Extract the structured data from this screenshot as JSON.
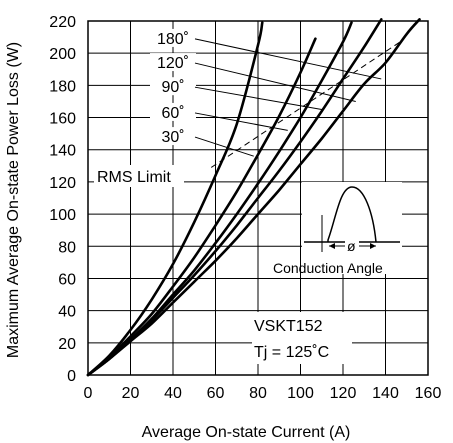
{
  "chart_data": {
    "type": "line",
    "xlabel": "Average On-state Current (A)",
    "ylabel": "Maximum Average On-state Power Loss (W)",
    "xlim": [
      0,
      160
    ],
    "ylim": [
      0,
      220
    ],
    "x_ticks": [
      0,
      20,
      40,
      60,
      80,
      100,
      120,
      140,
      160
    ],
    "y_ticks": [
      0,
      20,
      40,
      60,
      80,
      100,
      120,
      140,
      160,
      180,
      200,
      220
    ],
    "grid": true,
    "series": [
      {
        "name": "180˚",
        "x": [
          0,
          10,
          20,
          30,
          40,
          50,
          60,
          70,
          80,
          90,
          100,
          110,
          120,
          130,
          140,
          150,
          156
        ],
        "y": [
          0,
          10,
          21,
          32,
          45,
          58,
          71,
          85,
          100,
          115,
          131,
          147,
          164,
          181,
          194,
          212,
          221
        ]
      },
      {
        "name": "120˚",
        "x": [
          0,
          10,
          20,
          30,
          40,
          50,
          60,
          70,
          80,
          90,
          100,
          110,
          120,
          130,
          138
        ],
        "y": [
          0,
          10,
          22,
          34,
          48,
          62,
          77,
          93,
          110,
          127,
          145,
          164,
          184,
          204,
          221
        ]
      },
      {
        "name": "90˚",
        "x": [
          0,
          10,
          20,
          30,
          40,
          50,
          60,
          70,
          80,
          90,
          100,
          110,
          120,
          124
        ],
        "y": [
          0,
          10,
          22,
          35,
          50,
          65,
          82,
          100,
          119,
          139,
          160,
          183,
          207,
          219
        ]
      },
      {
        "name": "60˚",
        "x": [
          0,
          10,
          20,
          30,
          40,
          50,
          60,
          70,
          80,
          90,
          100,
          107
        ],
        "y": [
          0,
          11,
          24,
          38,
          55,
          73,
          93,
          114,
          137,
          161,
          188,
          209
        ]
      },
      {
        "name": "30˚",
        "x": [
          0,
          10,
          20,
          30,
          40,
          50,
          60,
          70,
          80,
          82
        ],
        "y": [
          0,
          12,
          28,
          47,
          69,
          95,
          124,
          156,
          205,
          219
        ]
      }
    ],
    "rms_limit": {
      "label": "RMS Limit",
      "x": [
        58,
        148
      ],
      "y": [
        129,
        208
      ]
    },
    "annotations": {
      "conduction_label": "Conduction Angle",
      "phi_symbol": "ø",
      "device": "VSKT152",
      "condition": "Tj = 125˚C"
    },
    "angle_labels": [
      {
        "text": "180˚",
        "x": 40,
        "y": 207,
        "target_x": 138,
        "target_y": 184
      },
      {
        "text": "120˚",
        "x": 40,
        "y": 192,
        "target_x": 126,
        "target_y": 170
      },
      {
        "text": "90˚",
        "x": 40,
        "y": 177,
        "target_x": 110,
        "target_y": 165
      },
      {
        "text": "60˚",
        "x": 40,
        "y": 161,
        "target_x": 94,
        "target_y": 152
      },
      {
        "text": "30˚",
        "x": 40,
        "y": 146,
        "target_x": 78,
        "target_y": 136
      }
    ]
  }
}
